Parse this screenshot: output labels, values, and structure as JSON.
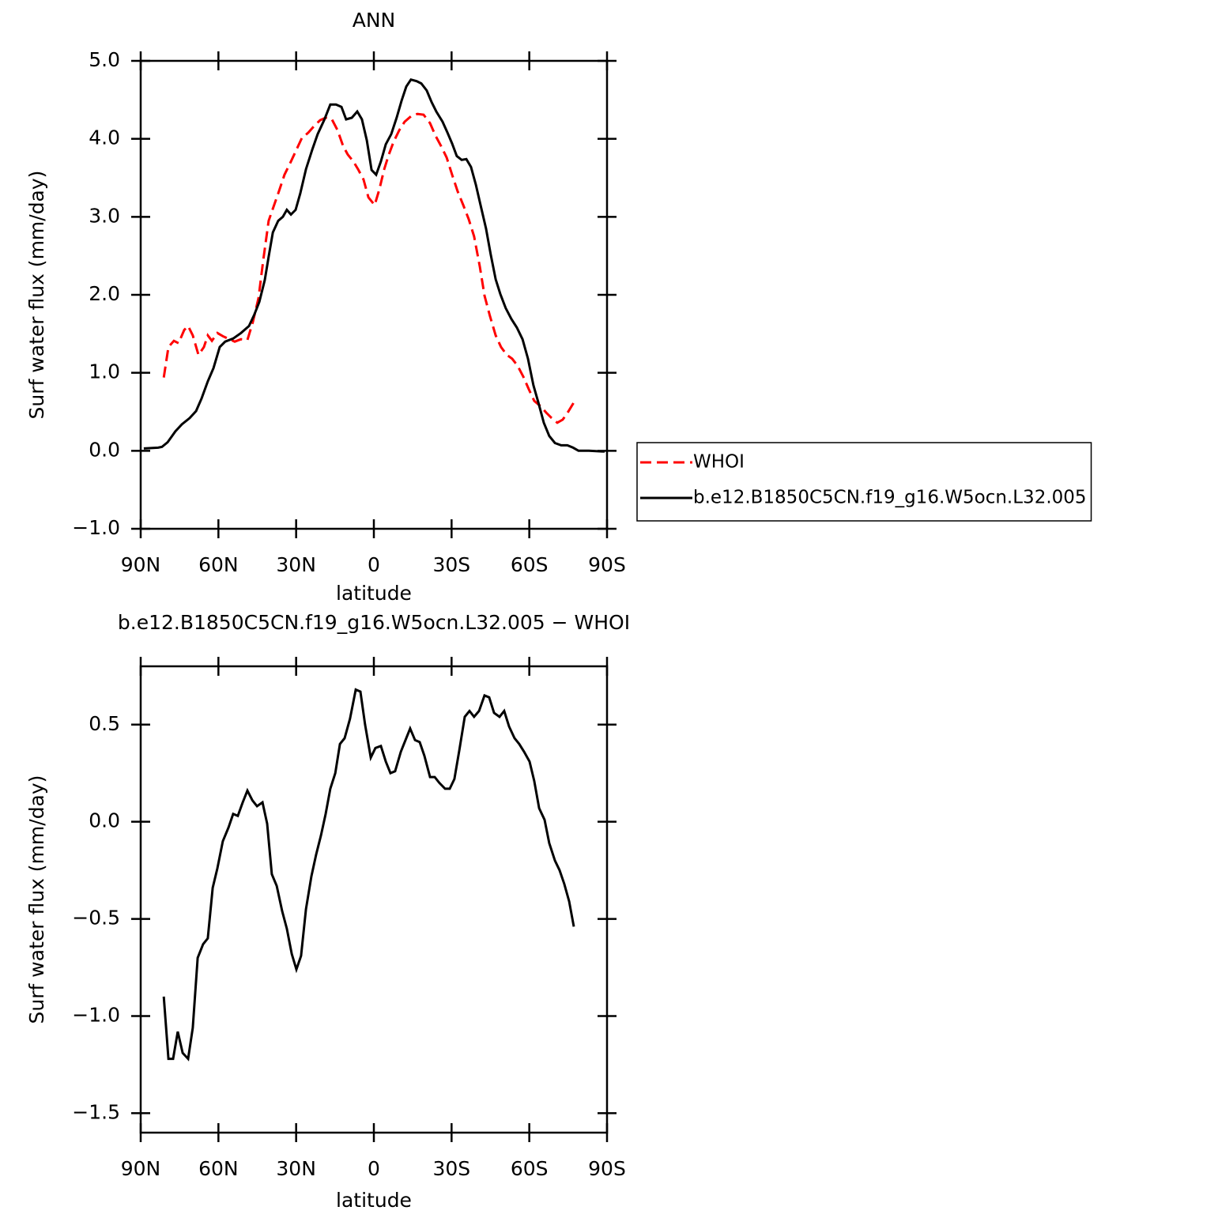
{
  "chart_data": [
    {
      "type": "line",
      "title": "ANN",
      "xlabel": "latitude",
      "ylabel": "Surf water flux (mm/day)",
      "xlim": [
        90,
        -90
      ],
      "xticks": [
        {
          "value": 90,
          "label": "90N"
        },
        {
          "value": 60,
          "label": "60N"
        },
        {
          "value": 30,
          "label": "30N"
        },
        0,
        {
          "value": -30,
          "label": "30S"
        },
        {
          "value": -60,
          "label": "60S"
        },
        {
          "value": -90,
          "label": "90S"
        }
      ],
      "ylim": [
        -1,
        5
      ],
      "yticks": [
        {
          "value": -1,
          "label": "−1.0"
        },
        {
          "value": 0,
          "label": "0.0"
        },
        {
          "value": 1,
          "label": "1.0"
        },
        {
          "value": 2,
          "label": "2.0"
        },
        {
          "value": 3,
          "label": "3.0"
        },
        {
          "value": 4,
          "label": "4.0"
        },
        {
          "value": 5,
          "label": "5.0"
        }
      ],
      "legend": "right",
      "series": [
        {
          "name": "WHOI",
          "color": "#ff0000",
          "line_style": "dashed",
          "x": [
            81.1,
            79.3,
            77.2,
            75.4,
            73.2,
            71.7,
            69.9,
            67.7,
            65.6,
            64.1,
            62.5,
            60.4,
            58.3,
            55.8,
            53.7,
            51.3,
            48.8,
            46.7,
            44.5,
            42.7,
            40.6,
            38.7,
            36.6,
            34.5,
            32.0,
            29.9,
            27.8,
            25.3,
            22.9,
            20.7,
            18.6,
            16.2,
            14.0,
            11.9,
            10.1,
            7.9,
            6.1,
            4.0,
            2.1,
            -0.3,
            -2.1,
            -4.0,
            -5.8,
            -7.6,
            -9.8,
            -11.9,
            -14.3,
            -16.8,
            -19.2,
            -21.7,
            -23.8,
            -25.9,
            -28.1,
            -30.2,
            -32.3,
            -34.5,
            -36.6,
            -38.7,
            -40.9,
            -42.7,
            -44.8,
            -47.0,
            -49.1,
            -51.3,
            -53.4,
            -55.5,
            -57.7,
            -59.8,
            -61.9,
            -64.4,
            -66.5,
            -68.6,
            -70.8,
            -72.9,
            -75.0,
            -77.2
          ],
          "values": [
            0.94,
            1.33,
            1.41,
            1.38,
            1.55,
            1.6,
            1.48,
            1.23,
            1.33,
            1.48,
            1.41,
            1.51,
            1.47,
            1.43,
            1.4,
            1.43,
            1.42,
            1.65,
            1.96,
            2.44,
            2.95,
            3.13,
            3.33,
            3.54,
            3.71,
            3.86,
            4.01,
            4.08,
            4.17,
            4.24,
            4.27,
            4.25,
            4.11,
            3.91,
            3.8,
            3.71,
            3.61,
            3.48,
            3.25,
            3.15,
            3.35,
            3.61,
            3.8,
            3.96,
            4.11,
            4.22,
            4.29,
            4.32,
            4.31,
            4.2,
            4.04,
            3.91,
            3.76,
            3.54,
            3.33,
            3.15,
            2.97,
            2.75,
            2.36,
            1.99,
            1.73,
            1.48,
            1.33,
            1.23,
            1.18,
            1.09,
            0.95,
            0.79,
            0.64,
            0.57,
            0.49,
            0.42,
            0.36,
            0.4,
            0.5,
            0.62
          ]
        },
        {
          "name": "b.e12.B1850C5CN.f19_g16.W5ocn.L32.005",
          "color": "#000000",
          "line_style": "solid",
          "x": [
            88.8,
            83.3,
            81.8,
            79.6,
            76.6,
            74.1,
            71.1,
            68.6,
            66.5,
            64.1,
            61.9,
            59.5,
            57.4,
            54.3,
            51.3,
            48.2,
            46.1,
            44.2,
            42.1,
            40.6,
            39.0,
            36.9,
            35.1,
            33.6,
            32.0,
            30.2,
            28.4,
            26.2,
            23.8,
            21.7,
            19.2,
            16.8,
            14.6,
            12.5,
            10.7,
            8.5,
            6.4,
            4.6,
            2.7,
            0.9,
            -0.9,
            -2.7,
            -4.6,
            -6.7,
            -8.8,
            -10.7,
            -12.5,
            -14.3,
            -16.5,
            -18.3,
            -20.4,
            -22.3,
            -24.1,
            -26.5,
            -28.4,
            -30.2,
            -32.0,
            -33.9,
            -35.7,
            -37.5,
            -39.4,
            -41.2,
            -43.3,
            -45.1,
            -47.0,
            -48.8,
            -50.9,
            -53.1,
            -55.2,
            -57.4,
            -59.5,
            -61.6,
            -63.5,
            -65.6,
            -67.7,
            -69.9,
            -72.3,
            -74.7,
            -76.9,
            -79.0,
            -83.0,
            -89.1
          ],
          "values": [
            0.03,
            0.04,
            0.05,
            0.11,
            0.25,
            0.34,
            0.42,
            0.51,
            0.67,
            0.89,
            1.06,
            1.33,
            1.4,
            1.44,
            1.51,
            1.6,
            1.75,
            1.91,
            2.19,
            2.49,
            2.8,
            2.95,
            3.0,
            3.09,
            3.03,
            3.09,
            3.3,
            3.61,
            3.86,
            4.06,
            4.24,
            4.44,
            4.44,
            4.41,
            4.25,
            4.27,
            4.35,
            4.25,
            3.98,
            3.6,
            3.54,
            3.71,
            3.93,
            4.06,
            4.27,
            4.49,
            4.67,
            4.76,
            4.74,
            4.71,
            4.62,
            4.47,
            4.35,
            4.22,
            4.08,
            3.94,
            3.78,
            3.73,
            3.74,
            3.64,
            3.41,
            3.15,
            2.85,
            2.52,
            2.2,
            2.01,
            1.83,
            1.69,
            1.58,
            1.43,
            1.18,
            0.84,
            0.62,
            0.36,
            0.19,
            0.1,
            0.07,
            0.07,
            0.04,
            0.0,
            0.0,
            -0.01
          ]
        }
      ]
    },
    {
      "type": "line",
      "title": "b.e12.B1850C5CN.f19_g16.W5ocn.L32.005 − WHOI",
      "xlabel": "latitude",
      "ylabel": "Surf water flux (mm/day)",
      "xlim": [
        90,
        -90
      ],
      "xticks": [
        {
          "value": 90,
          "label": "90N"
        },
        {
          "value": 60,
          "label": "60N"
        },
        {
          "value": 30,
          "label": "30N"
        },
        0,
        {
          "value": -30,
          "label": "30S"
        },
        {
          "value": -60,
          "label": "60S"
        },
        {
          "value": -90,
          "label": "90S"
        }
      ],
      "ylim": [
        -1.6,
        0.8
      ],
      "yticks": [
        {
          "value": -1.5,
          "label": "−1.5"
        },
        {
          "value": -1,
          "label": "−1.0"
        },
        {
          "value": -0.5,
          "label": "−0.5"
        },
        {
          "value": 0,
          "label": "0.0"
        },
        0.5
      ],
      "series": [
        {
          "color": "#000000",
          "line_style": "solid",
          "x": [
            81.1,
            79.3,
            77.5,
            75.7,
            73.8,
            71.7,
            69.9,
            68.0,
            65.9,
            64.1,
            62.2,
            60.4,
            58.3,
            56.1,
            54.3,
            52.5,
            50.6,
            48.8,
            46.9,
            45.1,
            43.0,
            41.2,
            39.4,
            37.5,
            35.4,
            33.6,
            31.7,
            29.9,
            28.1,
            26.2,
            24.1,
            22.3,
            20.4,
            18.6,
            16.8,
            14.9,
            13.1,
            11.3,
            9.2,
            7.0,
            5.2,
            3.4,
            1.2,
            -0.6,
            -2.7,
            -4.6,
            -6.4,
            -8.2,
            -10.4,
            -12.2,
            -14.0,
            -15.9,
            -17.7,
            -19.5,
            -21.7,
            -23.5,
            -25.3,
            -27.5,
            -29.3,
            -31.1,
            -33.0,
            -35.1,
            -36.9,
            -38.7,
            -40.6,
            -42.7,
            -44.5,
            -46.4,
            -48.5,
            -50.3,
            -52.2,
            -54.3,
            -56.1,
            -58.0,
            -60.1,
            -61.9,
            -63.8,
            -65.9,
            -67.7,
            -69.9,
            -71.7,
            -73.5,
            -75.4,
            -77.2
          ],
          "values": [
            -0.9,
            -1.22,
            -1.22,
            -1.08,
            -1.19,
            -1.22,
            -1.06,
            -0.7,
            -0.63,
            -0.6,
            -0.34,
            -0.24,
            -0.1,
            -0.03,
            0.04,
            0.03,
            0.1,
            0.16,
            0.11,
            0.08,
            0.1,
            -0.01,
            -0.27,
            -0.33,
            -0.46,
            -0.55,
            -0.68,
            -0.76,
            -0.69,
            -0.45,
            -0.28,
            -0.17,
            -0.07,
            0.04,
            0.17,
            0.25,
            0.4,
            0.43,
            0.53,
            0.68,
            0.67,
            0.5,
            0.33,
            0.38,
            0.39,
            0.31,
            0.25,
            0.26,
            0.36,
            0.42,
            0.48,
            0.42,
            0.41,
            0.34,
            0.23,
            0.23,
            0.2,
            0.17,
            0.17,
            0.22,
            0.37,
            0.54,
            0.57,
            0.54,
            0.57,
            0.65,
            0.64,
            0.56,
            0.54,
            0.57,
            0.49,
            0.43,
            0.4,
            0.36,
            0.31,
            0.21,
            0.07,
            0.01,
            -0.11,
            -0.2,
            -0.25,
            -0.32,
            -0.41,
            -0.54
          ]
        }
      ]
    }
  ]
}
